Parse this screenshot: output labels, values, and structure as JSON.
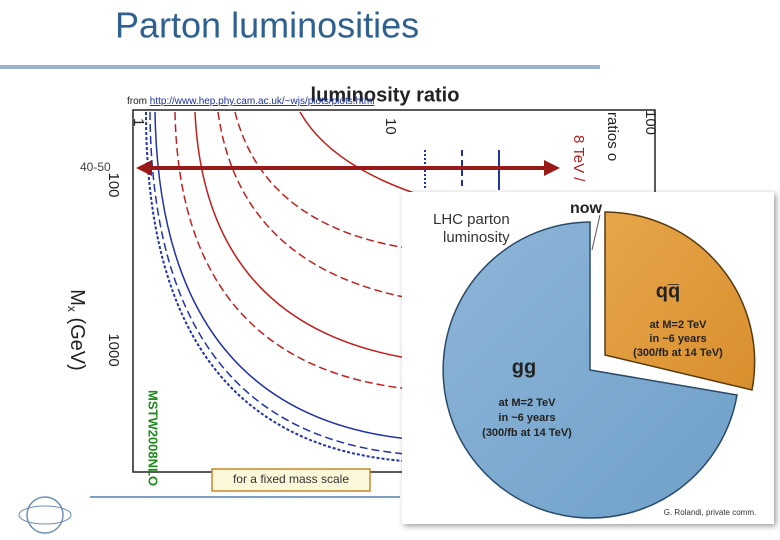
{
  "header": {
    "title": "Parton luminosities"
  },
  "source": {
    "prefix": "from ",
    "link": "http://www.hep.phy.cam.ac.uk/~wjs/plots/plots.html"
  },
  "plot": {
    "title": "luminosity ratio",
    "top_ticks": [
      "1",
      "10",
      "100"
    ],
    "left_ticks": [
      "100",
      "1000"
    ],
    "y_label": "M",
    "y_label_sub": "x",
    "y_label_unit": " (GeV)",
    "pdf": "MSTW2008NLO",
    "legend": [
      "ratios o",
      "8 TeV /"
    ]
  },
  "annotations": {
    "range": "40-50",
    "note": "for a fixed mass scale",
    "credit": "G. Rolandi, private comm."
  },
  "inset": {
    "title_lines": [
      "LHC parton",
      "luminosity"
    ],
    "now": "now",
    "slices": [
      {
        "label": "qq̅",
        "text": [
          "at M=2 TeV",
          "in ~6 years",
          "(300/fb at 14 TeV)"
        ]
      },
      {
        "label": "gg",
        "text": [
          "at M=2 TeV",
          "in ~6 years",
          "(300/fb at 14 TeV)"
        ]
      }
    ]
  }
}
